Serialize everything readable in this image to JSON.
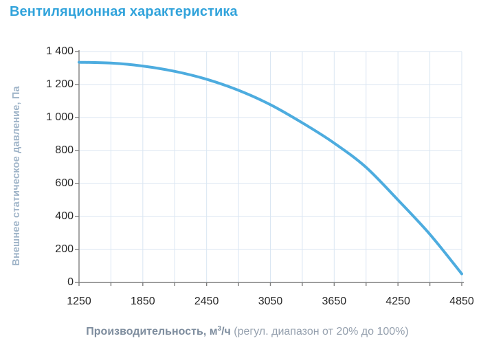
{
  "page": {
    "background": "#ffffff"
  },
  "colors": {
    "title": "#31a3db",
    "curve": "#4dacdf",
    "grid": "#d9e6f2",
    "axis": "#7f7f7f",
    "tick_text": "#262626",
    "y_axis_title": "#9fb4c8",
    "x_axis_title_bold": "#7e8d9e",
    "x_axis_title_note": "#95a0ae"
  },
  "chart_data": {
    "type": "line",
    "title": "Вентиляционная характеристика",
    "ylabel": "Внешнее статическое давление, Па",
    "xlabel": "Производительность, м3/ч (регул. диапазон от 20% до 100%)",
    "xlabel_bold": "Производительность, м",
    "xlabel_sup": "3",
    "xlabel_unit": "/ч",
    "xlabel_note": " (регул. диапазон от 20% до 100%)",
    "xlim": [
      1250,
      4850
    ],
    "ylim": [
      0,
      1400
    ],
    "x_ticks": [
      1250,
      1850,
      2450,
      3050,
      3650,
      4250,
      4850
    ],
    "x_tick_labels": [
      "1250",
      "1850",
      "2450",
      "3050",
      "3650",
      "4250",
      "4850"
    ],
    "x_minor_tick_step": 300,
    "y_ticks": [
      0,
      200,
      400,
      600,
      800,
      1000,
      1200,
      1400
    ],
    "y_tick_labels": [
      "0",
      "200",
      "400",
      "600",
      "800",
      "1 000",
      "1 200",
      "1 400"
    ],
    "grid": true,
    "legend": false,
    "series": [
      {
        "name": "fan-curve",
        "x": [
          1250,
          1550,
          1850,
          2150,
          2450,
          2750,
          3050,
          3350,
          3650,
          3950,
          4250,
          4550,
          4850
        ],
        "y": [
          1335,
          1330,
          1312,
          1280,
          1232,
          1165,
          1078,
          968,
          845,
          698,
          500,
          292,
          52
        ]
      }
    ]
  }
}
